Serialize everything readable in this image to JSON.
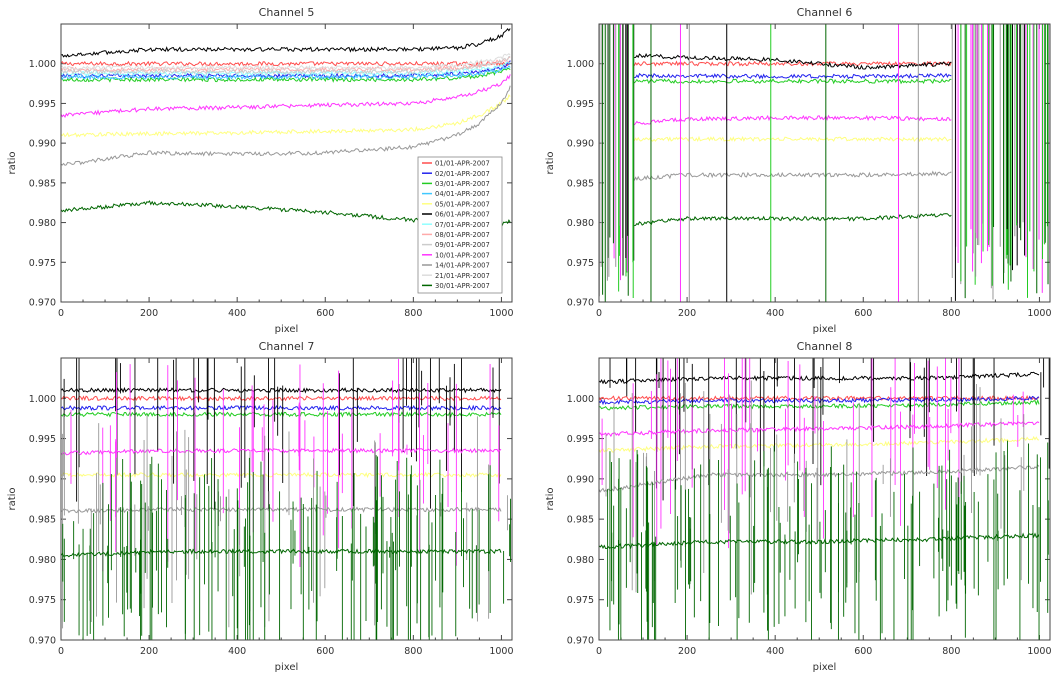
{
  "chart_data": [
    {
      "type": "line",
      "title": "Channel 5",
      "xlabel": "pixel",
      "ylabel": "ratio",
      "xlim": [
        0,
        1024
      ],
      "ylim": [
        0.97,
        1.005
      ],
      "xticks": [
        "0",
        "200",
        "400",
        "600",
        "800",
        "1000"
      ],
      "yticks": [
        "0.970",
        "0.975",
        "0.980",
        "0.985",
        "0.990",
        "0.995",
        "1.000"
      ],
      "legend_position": "bottom-right",
      "series": [
        {
          "name": "01/01-APR-2007",
          "color": "#ff4d4d",
          "x": [
            0,
            200,
            400,
            600,
            800,
            900,
            950,
            1000,
            1020
          ],
          "y": [
            1.0,
            1.0,
            1.0,
            1.0,
            1.0,
            1.0,
            1.0,
            1.0,
            1.0
          ]
        },
        {
          "name": "02/01-APR-2007",
          "color": "#2222ee",
          "x": [
            0,
            200,
            400,
            600,
            800,
            900,
            950,
            1000,
            1020
          ],
          "y": [
            0.9985,
            0.9985,
            0.9985,
            0.9985,
            0.9985,
            0.9987,
            0.999,
            0.9995,
            1.0002
          ]
        },
        {
          "name": "03/01-APR-2007",
          "color": "#22cc22",
          "x": [
            0,
            200,
            400,
            600,
            800,
            900,
            950,
            1000,
            1020
          ],
          "y": [
            0.998,
            0.998,
            0.998,
            0.998,
            0.998,
            0.9982,
            0.9985,
            0.999,
            0.9995
          ]
        },
        {
          "name": "04/01-APR-2007",
          "color": "#40c8ff",
          "x": [
            0,
            200,
            400,
            600,
            800,
            900,
            950,
            1000,
            1020
          ],
          "y": [
            0.9983,
            0.9983,
            0.9983,
            0.9983,
            0.9983,
            0.9985,
            0.9987,
            0.9992,
            0.9997
          ]
        },
        {
          "name": "05/01-APR-2007",
          "color": "#ffff80",
          "x": [
            0,
            200,
            400,
            600,
            800,
            900,
            950,
            1000,
            1020
          ],
          "y": [
            0.991,
            0.9912,
            0.9913,
            0.9915,
            0.9917,
            0.9925,
            0.9935,
            0.995,
            0.996
          ]
        },
        {
          "name": "06/01-APR-2007",
          "color": "#000000",
          "x": [
            0,
            200,
            400,
            600,
            800,
            900,
            950,
            1000,
            1020
          ],
          "y": [
            1.001,
            1.0018,
            1.0018,
            1.0018,
            1.0018,
            1.002,
            1.0025,
            1.0035,
            1.0045
          ]
        },
        {
          "name": "07/01-APR-2007",
          "color": "#90ffff",
          "x": [
            0,
            200,
            400,
            600,
            800,
            900,
            950,
            1000,
            1020
          ],
          "y": [
            0.9988,
            0.9988,
            0.9988,
            0.9988,
            0.9988,
            0.999,
            0.9992,
            0.9997,
            1.0002
          ]
        },
        {
          "name": "08/01-APR-2007",
          "color": "#ffaaaa",
          "x": [
            0,
            200,
            400,
            600,
            800,
            900,
            950,
            1000,
            1020
          ],
          "y": [
            0.9993,
            0.9993,
            0.9993,
            0.9993,
            0.9993,
            0.9995,
            0.9998,
            1.0003,
            1.0008
          ]
        },
        {
          "name": "09/01-APR-2007",
          "color": "#cccccc",
          "x": [
            0,
            200,
            400,
            600,
            800,
            900,
            950,
            1000,
            1020
          ],
          "y": [
            0.999,
            0.999,
            0.999,
            0.999,
            0.999,
            0.9993,
            0.9997,
            1.0003,
            1.0008
          ]
        },
        {
          "name": "10/01-APR-2007",
          "color": "#ff33ff",
          "x": [
            0,
            200,
            400,
            600,
            800,
            900,
            950,
            1000,
            1020
          ],
          "y": [
            0.9935,
            0.9943,
            0.9945,
            0.9948,
            0.995,
            0.9958,
            0.9965,
            0.9975,
            0.9985
          ]
        },
        {
          "name": "14/01-APR-2007",
          "color": "#999999",
          "x": [
            0,
            200,
            400,
            600,
            800,
            900,
            950,
            1000,
            1020
          ],
          "y": [
            0.9872,
            0.9888,
            0.9886,
            0.9888,
            0.9895,
            0.991,
            0.9925,
            0.995,
            0.997
          ]
        },
        {
          "name": "21/01-APR-2007",
          "color": "#dddddd",
          "x": [
            0,
            200,
            400,
            600,
            800,
            900,
            950,
            1000,
            1020
          ],
          "y": [
            0.9995,
            0.9995,
            0.9995,
            0.9995,
            0.9995,
            0.9998,
            1.0002,
            1.0008,
            1.0013
          ]
        },
        {
          "name": "30/01-APR-2007",
          "color": "#006600",
          "x": [
            0,
            200,
            400,
            600,
            800,
            900,
            950,
            1000,
            1020
          ],
          "y": [
            0.9815,
            0.9825,
            0.982,
            0.9813,
            0.9803,
            0.98,
            0.9798,
            0.9798,
            0.9802
          ]
        }
      ]
    },
    {
      "type": "line",
      "title": "Channel 6",
      "xlabel": "pixel",
      "ylabel": "ratio",
      "xlim": [
        0,
        1024
      ],
      "ylim": [
        0.97,
        1.005
      ],
      "xticks": [
        "0",
        "200",
        "400",
        "600",
        "800",
        "1000"
      ],
      "yticks": [
        "0.970",
        "0.975",
        "0.980",
        "0.985",
        "0.990",
        "0.995",
        "1.000"
      ],
      "series": [
        {
          "color": "#ff4d4d",
          "x": [
            80,
            200,
            400,
            600,
            800
          ],
          "y": [
            1.0,
            1.0,
            1.0,
            1.0,
            1.0
          ]
        },
        {
          "color": "#2222ee",
          "x": [
            80,
            200,
            400,
            600,
            800
          ],
          "y": [
            0.9985,
            0.9985,
            0.9984,
            0.9984,
            0.9985
          ]
        },
        {
          "color": "#22cc22",
          "x": [
            80,
            200,
            400,
            600,
            800
          ],
          "y": [
            0.9978,
            0.9978,
            0.9978,
            0.9978,
            0.9978
          ]
        },
        {
          "color": "#ffff80",
          "x": [
            80,
            200,
            400,
            600,
            800
          ],
          "y": [
            0.9905,
            0.9905,
            0.9905,
            0.9905,
            0.9905
          ]
        },
        {
          "color": "#000000",
          "x": [
            80,
            200,
            400,
            600,
            800
          ],
          "y": [
            1.001,
            1.0008,
            1.0005,
            0.9995,
            1.0
          ]
        },
        {
          "color": "#ff33ff",
          "x": [
            80,
            200,
            400,
            600,
            800
          ],
          "y": [
            0.9925,
            0.993,
            0.9932,
            0.9932,
            0.993
          ]
        },
        {
          "color": "#999999",
          "x": [
            80,
            200,
            400,
            600,
            800
          ],
          "y": [
            0.9855,
            0.986,
            0.986,
            0.986,
            0.9862
          ]
        },
        {
          "color": "#006600",
          "x": [
            80,
            200,
            400,
            600,
            800
          ],
          "y": [
            0.9798,
            0.9805,
            0.9805,
            0.9805,
            0.981
          ]
        }
      ]
    },
    {
      "type": "line",
      "title": "Channel 7",
      "xlabel": "pixel",
      "ylabel": "ratio",
      "xlim": [
        0,
        1024
      ],
      "ylim": [
        0.97,
        1.005
      ],
      "xticks": [
        "0",
        "200",
        "400",
        "600",
        "800",
        "1000"
      ],
      "yticks": [
        "0.970",
        "0.975",
        "0.980",
        "0.985",
        "0.990",
        "0.995",
        "1.000"
      ],
      "series": [
        {
          "color": "#ff4d4d",
          "x": [
            0,
            250,
            500,
            750,
            1000
          ],
          "y": [
            1.0,
            1.0,
            1.0,
            1.0,
            1.0
          ]
        },
        {
          "color": "#2222ee",
          "x": [
            0,
            250,
            500,
            750,
            1000
          ],
          "y": [
            0.9988,
            0.9988,
            0.9988,
            0.9988,
            0.9988
          ]
        },
        {
          "color": "#22cc22",
          "x": [
            0,
            250,
            500,
            750,
            1000
          ],
          "y": [
            0.998,
            0.998,
            0.998,
            0.998,
            0.998
          ]
        },
        {
          "color": "#ffff80",
          "x": [
            0,
            250,
            500,
            750,
            1000
          ],
          "y": [
            0.9905,
            0.9905,
            0.9905,
            0.9905,
            0.9905
          ]
        },
        {
          "color": "#000000",
          "x": [
            0,
            250,
            500,
            750,
            1000
          ],
          "y": [
            1.001,
            1.001,
            1.001,
            1.001,
            1.001
          ]
        },
        {
          "color": "#ff33ff",
          "x": [
            0,
            250,
            500,
            750,
            1000
          ],
          "y": [
            0.9932,
            0.9935,
            0.9935,
            0.9935,
            0.9935
          ]
        },
        {
          "color": "#999999",
          "x": [
            0,
            250,
            500,
            750,
            1000
          ],
          "y": [
            0.986,
            0.9862,
            0.9862,
            0.9862,
            0.9862
          ]
        },
        {
          "color": "#006600",
          "x": [
            0,
            250,
            500,
            750,
            1000
          ],
          "y": [
            0.9805,
            0.981,
            0.981,
            0.981,
            0.981
          ]
        }
      ]
    },
    {
      "type": "line",
      "title": "Channel 8",
      "xlabel": "pixel",
      "ylabel": "ratio",
      "xlim": [
        0,
        1024
      ],
      "ylim": [
        0.97,
        1.005
      ],
      "xticks": [
        "0",
        "200",
        "400",
        "600",
        "800",
        "1000"
      ],
      "yticks": [
        "0.970",
        "0.975",
        "0.980",
        "0.985",
        "0.990",
        "0.995",
        "1.000"
      ],
      "series": [
        {
          "color": "#ff4d4d",
          "x": [
            0,
            250,
            500,
            750,
            1000
          ],
          "y": [
            1.0,
            1.0,
            1.0,
            1.0,
            1.0
          ]
        },
        {
          "color": "#2222ee",
          "x": [
            0,
            250,
            500,
            750,
            1000
          ],
          "y": [
            0.9995,
            0.9997,
            0.9997,
            0.9998,
            1.0
          ]
        },
        {
          "color": "#22cc22",
          "x": [
            0,
            250,
            500,
            750,
            1000
          ],
          "y": [
            0.9988,
            0.999,
            0.999,
            0.9992,
            0.9995
          ]
        },
        {
          "color": "#ffff80",
          "x": [
            0,
            250,
            500,
            750,
            1000
          ],
          "y": [
            0.9935,
            0.994,
            0.9942,
            0.9945,
            0.995
          ]
        },
        {
          "color": "#000000",
          "x": [
            0,
            250,
            500,
            750,
            1000
          ],
          "y": [
            1.002,
            1.0025,
            1.0025,
            1.0025,
            1.003
          ]
        },
        {
          "color": "#ff33ff",
          "x": [
            0,
            250,
            500,
            750,
            1000
          ],
          "y": [
            0.9955,
            0.996,
            0.9962,
            0.9965,
            0.997
          ]
        },
        {
          "color": "#999999",
          "x": [
            0,
            250,
            500,
            750,
            1000
          ],
          "y": [
            0.9885,
            0.9905,
            0.9905,
            0.9908,
            0.9915
          ]
        },
        {
          "color": "#006600",
          "x": [
            0,
            250,
            500,
            750,
            1000
          ],
          "y": [
            0.9815,
            0.9822,
            0.9822,
            0.9825,
            0.983
          ]
        }
      ]
    }
  ]
}
